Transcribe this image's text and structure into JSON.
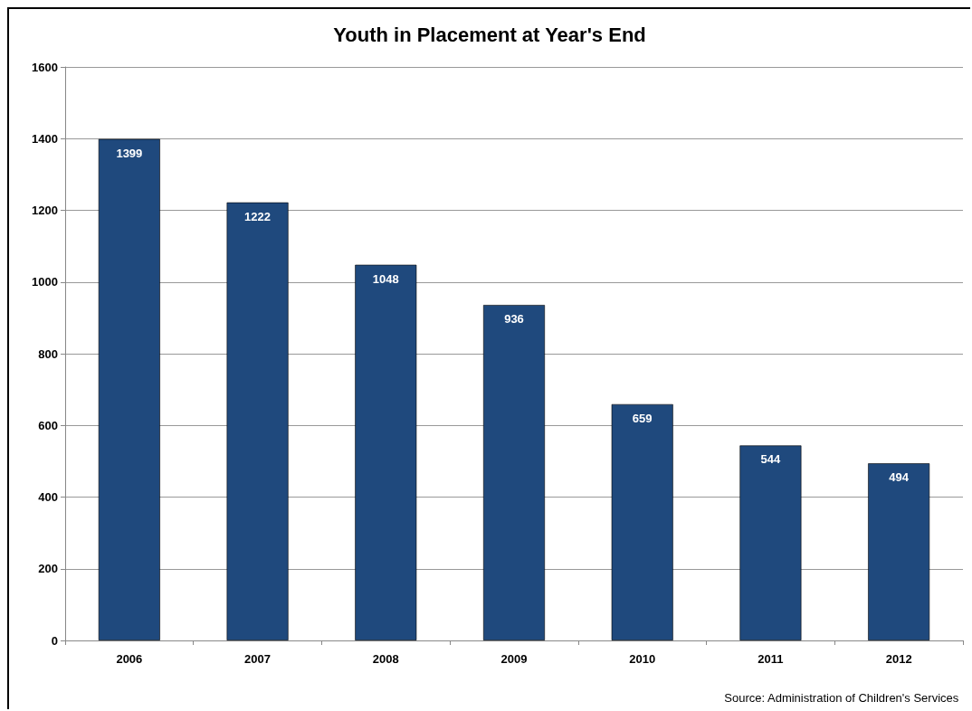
{
  "chart_data": {
    "type": "bar",
    "title": "Youth in Placement at Year's End",
    "categories": [
      "2006",
      "2007",
      "2008",
      "2009",
      "2010",
      "2011",
      "2012"
    ],
    "values": [
      1399,
      1222,
      1048,
      936,
      659,
      544,
      494
    ],
    "color": "#1f497d",
    "ylim": [
      0,
      1600
    ],
    "yticks": [
      0,
      200,
      400,
      600,
      800,
      1000,
      1200,
      1400,
      1600
    ],
    "grid": "y",
    "data_labels": true,
    "annotations": [
      "Source: Administration of Children's Services"
    ]
  }
}
